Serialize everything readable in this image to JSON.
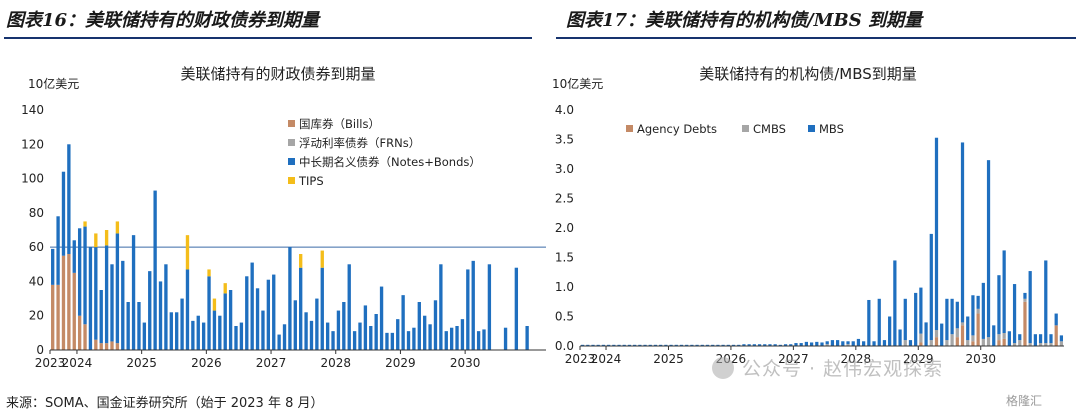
{
  "header": {
    "left_title": "图表16：美联储持有的财政债券到期量",
    "right_title": "图表17：美联储持有的机构债/MBS 到期量"
  },
  "source": "来源：SOMA、国金证券研究所（始于 2023 年 8 月）",
  "watermark": "公众号 · 赵伟宏观探索",
  "corner_mark": "格隆汇",
  "colors": {
    "bills": "#c48a66",
    "frns": "#a6a6a6",
    "notes": "#1f6fbf",
    "tips": "#f4bd1a",
    "agency": "#c48a66",
    "cmbs": "#a6a6a6",
    "mbs": "#1f6fbf",
    "rule": "#16336e"
  },
  "chart_data": [
    {
      "type": "bar",
      "stacked": true,
      "title": "美联储持有的财政债券到期量",
      "unit_label": "10亿美元",
      "ylim": [
        0,
        140
      ],
      "yticks": [
        "0",
        "20",
        "40",
        "60",
        "80",
        "100",
        "120",
        "140"
      ],
      "xticks": [
        "2023",
        "2024",
        "2025",
        "2026",
        "2027",
        "2028",
        "2029",
        "2030"
      ],
      "x_start": "2023-08",
      "reference_line": 60,
      "legend": [
        "国库券（Bills）",
        "浮动利率债券（FRNs）",
        "中长期名义债券（Notes+Bonds）",
        "TIPS"
      ],
      "legend_position": "top-right",
      "series": [
        {
          "name": "国库券（Bills）",
          "values": [
            38,
            38,
            55,
            56,
            45,
            20,
            15,
            0,
            6,
            4,
            4,
            5,
            4,
            0,
            0,
            0,
            0,
            0,
            0,
            0,
            0,
            0,
            0,
            0,
            0,
            0,
            0,
            0,
            0,
            0,
            0,
            0,
            0,
            0,
            0,
            0,
            0,
            0,
            0,
            0,
            0,
            0,
            0,
            0,
            0,
            0,
            0,
            0,
            0,
            0,
            0,
            0,
            0,
            0,
            0,
            0,
            0,
            0,
            0,
            0,
            0,
            0,
            0,
            0,
            0,
            0,
            0,
            0,
            0,
            0,
            0,
            0,
            0,
            0,
            0,
            0,
            0,
            0,
            0,
            0,
            0,
            0,
            0,
            0,
            0,
            0,
            0,
            0,
            0,
            0,
            0,
            0
          ]
        },
        {
          "name": "浮动利率债券（FRNs）",
          "values": [
            0,
            0,
            0,
            0,
            0,
            0,
            0,
            0,
            0,
            0,
            0,
            0,
            0,
            0,
            0,
            0,
            0,
            0,
            0,
            0,
            0,
            0,
            0,
            0,
            0,
            0,
            0,
            0,
            0,
            0,
            0,
            0,
            0,
            0,
            0,
            0,
            0,
            0,
            0,
            0,
            0,
            0,
            0,
            0,
            0,
            0,
            0,
            0,
            0,
            0,
            0,
            0,
            0,
            0,
            0,
            0,
            0,
            0,
            0,
            0,
            0,
            0,
            0,
            0,
            0,
            0,
            0,
            0,
            0,
            0,
            0,
            0,
            0,
            0,
            0,
            0,
            0,
            0,
            0,
            0,
            0,
            0,
            0,
            0,
            0,
            0,
            0,
            0,
            0,
            0,
            0,
            0
          ]
        },
        {
          "name": "中长期名义债券（Notes+Bonds）",
          "values": [
            21,
            40,
            49,
            64,
            19,
            51,
            57,
            60,
            54,
            31,
            57,
            45,
            64,
            52,
            28,
            67,
            28,
            16,
            46,
            93,
            40,
            50,
            22,
            22,
            30,
            47,
            17,
            20,
            16,
            43,
            23,
            20,
            33,
            35,
            14,
            16,
            43,
            51,
            36,
            23,
            41,
            44,
            9,
            15,
            60,
            29,
            48,
            22,
            17,
            30,
            48,
            16,
            11,
            23,
            28,
            50,
            11,
            16,
            26,
            14,
            21,
            37,
            10,
            10,
            18,
            32,
            11,
            13,
            28,
            20,
            15,
            29,
            50,
            11,
            13,
            14,
            18,
            47,
            52,
            11,
            12,
            50,
            0,
            0,
            13,
            0,
            48,
            0,
            14,
            0,
            0,
            0
          ]
        },
        {
          "name": "TIPS",
          "values": [
            0,
            0,
            0,
            0,
            0,
            0,
            3,
            0,
            8,
            0,
            9,
            0,
            7,
            0,
            0,
            0,
            0,
            0,
            0,
            0,
            0,
            0,
            0,
            0,
            0,
            20,
            0,
            0,
            0,
            4,
            7,
            0,
            6,
            0,
            0,
            0,
            0,
            0,
            0,
            0,
            0,
            0,
            0,
            0,
            0,
            0,
            8,
            0,
            0,
            0,
            10,
            0,
            0,
            0,
            0,
            0,
            0,
            0,
            0,
            0,
            0,
            0,
            0,
            0,
            0,
            0,
            0,
            0,
            0,
            0,
            0,
            0,
            0,
            0,
            0,
            0,
            0,
            0,
            0,
            0,
            0,
            0,
            0,
            0,
            0,
            0,
            0,
            0,
            0,
            0,
            0,
            0
          ]
        }
      ]
    },
    {
      "type": "bar",
      "stacked": true,
      "title": "美联储持有的机构债/MBS到期量",
      "unit_label": "10亿美元",
      "ylim": [
        0,
        4.0
      ],
      "yticks": [
        "0.0",
        "0.5",
        "1.0",
        "1.5",
        "2.0",
        "2.5",
        "3.0",
        "3.5",
        "4.0"
      ],
      "xticks": [
        "2023",
        "2024",
        "2025",
        "2026",
        "2027",
        "2028",
        "2029",
        "2030"
      ],
      "x_start": "2023-08",
      "legend": [
        "Agency Debts",
        "CMBS",
        "MBS"
      ],
      "legend_position": "top-left",
      "series": [
        {
          "name": "Agency Debts",
          "values": [
            0,
            0,
            0,
            0,
            0,
            0,
            0,
            0,
            0,
            0,
            0,
            0,
            0,
            0,
            0,
            0,
            0,
            0,
            0,
            0,
            0,
            0,
            0,
            0,
            0,
            0,
            0,
            0,
            0,
            0,
            0,
            0,
            0,
            0,
            0,
            0,
            0,
            0,
            0,
            0,
            0,
            0,
            0,
            0,
            0,
            0,
            0,
            0,
            0,
            0,
            0,
            0,
            0,
            0,
            0,
            0,
            0,
            0,
            0,
            0,
            0,
            0,
            0,
            0,
            0,
            0.06,
            0,
            0,
            0.15,
            0,
            0,
            0,
            0.15,
            0.35,
            0,
            0.08,
            0.55,
            0,
            0,
            0,
            0.1,
            0.12,
            0,
            0,
            0,
            0.75,
            0,
            0,
            0,
            0,
            0,
            0.35,
            0
          ]
        },
        {
          "name": "CMBS",
          "values": [
            0,
            0,
            0,
            0,
            0,
            0,
            0,
            0,
            0,
            0,
            0,
            0,
            0,
            0,
            0,
            0,
            0,
            0,
            0,
            0,
            0,
            0,
            0,
            0,
            0,
            0,
            0,
            0,
            0,
            0,
            0,
            0,
            0,
            0,
            0,
            0,
            0,
            0,
            0,
            0,
            0,
            0,
            0,
            0,
            0,
            0,
            0,
            0.03,
            0,
            0,
            0,
            0.03,
            0,
            0,
            0,
            0,
            0,
            0,
            0,
            0,
            0,
            0,
            0.1,
            0,
            0,
            0.15,
            0,
            0.1,
            0.12,
            0,
            0.1,
            0.2,
            0.15,
            0.05,
            0.1,
            0.1,
            0.08,
            0.12,
            0.15,
            0,
            0.1,
            0.1,
            0,
            0.05,
            0.1,
            0.05,
            0.05,
            0,
            0.05,
            0.05,
            0.05,
            0,
            0.08
          ]
        },
        {
          "name": "MBS",
          "values": [
            0.02,
            0.02,
            0.02,
            0.02,
            0.02,
            0.02,
            0.02,
            0.02,
            0.02,
            0.02,
            0.02,
            0.02,
            0.02,
            0.02,
            0.02,
            0.02,
            0.02,
            0.02,
            0.02,
            0.02,
            0.02,
            0.02,
            0.02,
            0.02,
            0.02,
            0.02,
            0.02,
            0.02,
            0.02,
            0.02,
            0.02,
            0.03,
            0.03,
            0.03,
            0.03,
            0.03,
            0.03,
            0.03,
            0.02,
            0.03,
            0.03,
            0.05,
            0.05,
            0.07,
            0.06,
            0.07,
            0.06,
            0.05,
            0.1,
            0.1,
            0.08,
            0.05,
            0.08,
            0.12,
            0.08,
            0.78,
            0.08,
            0.8,
            0.1,
            0.5,
            1.45,
            0.28,
            0.7,
            0.1,
            0.9,
            0.78,
            0.4,
            1.8,
            3.26,
            0.38,
            0.7,
            0.6,
            0.45,
            3.05,
            0.4,
            0.68,
            0.22,
            0.95,
            3.0,
            0.35,
            1.0,
            1.4,
            0.25,
            1.0,
            0.1,
            0.1,
            1.22,
            0.2,
            0.15,
            1.4,
            0.15,
            0.2,
            0.1
          ]
        }
      ]
    }
  ]
}
